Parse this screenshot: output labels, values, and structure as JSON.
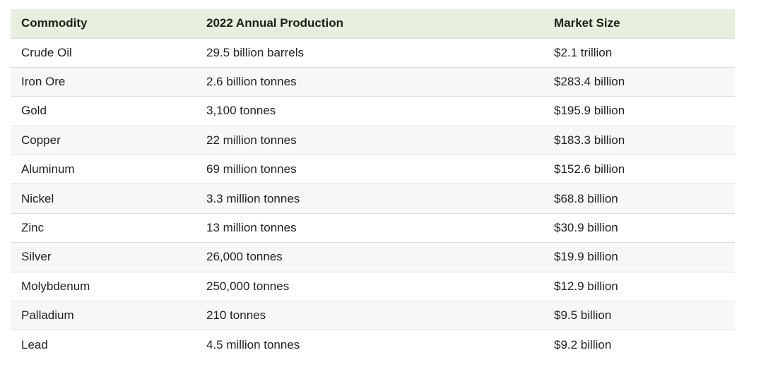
{
  "table": {
    "headers": [
      "Commodity",
      "2022 Annual Production",
      "Market Size"
    ],
    "rows": [
      [
        "Crude Oil",
        "29.5 billion barrels",
        "$2.1 trillion"
      ],
      [
        "Iron Ore",
        "2.6 billion tonnes",
        "$283.4 billion"
      ],
      [
        "Gold",
        "3,100 tonnes",
        "$195.9 billion"
      ],
      [
        "Copper",
        "22 million tonnes",
        "$183.3 billion"
      ],
      [
        "Aluminum",
        "69 million tonnes",
        "$152.6 billion"
      ],
      [
        "Nickel",
        "3.3 million tonnes",
        "$68.8 billion"
      ],
      [
        "Zinc",
        "13 million tonnes",
        "$30.9 billion"
      ],
      [
        "Silver",
        "26,000 tonnes",
        "$19.9 billion"
      ],
      [
        "Molybdenum",
        "250,000 tonnes",
        "$12.9 billion"
      ],
      [
        "Palladium",
        "210 tonnes",
        "$9.5 billion"
      ],
      [
        "Lead",
        "4.5 million tonnes",
        "$9.2 billion"
      ]
    ]
  },
  "colors": {
    "header_bg": "#e6f0dc",
    "row_alt_bg": "#f7f7f7",
    "divider": "#dcdcdc"
  }
}
